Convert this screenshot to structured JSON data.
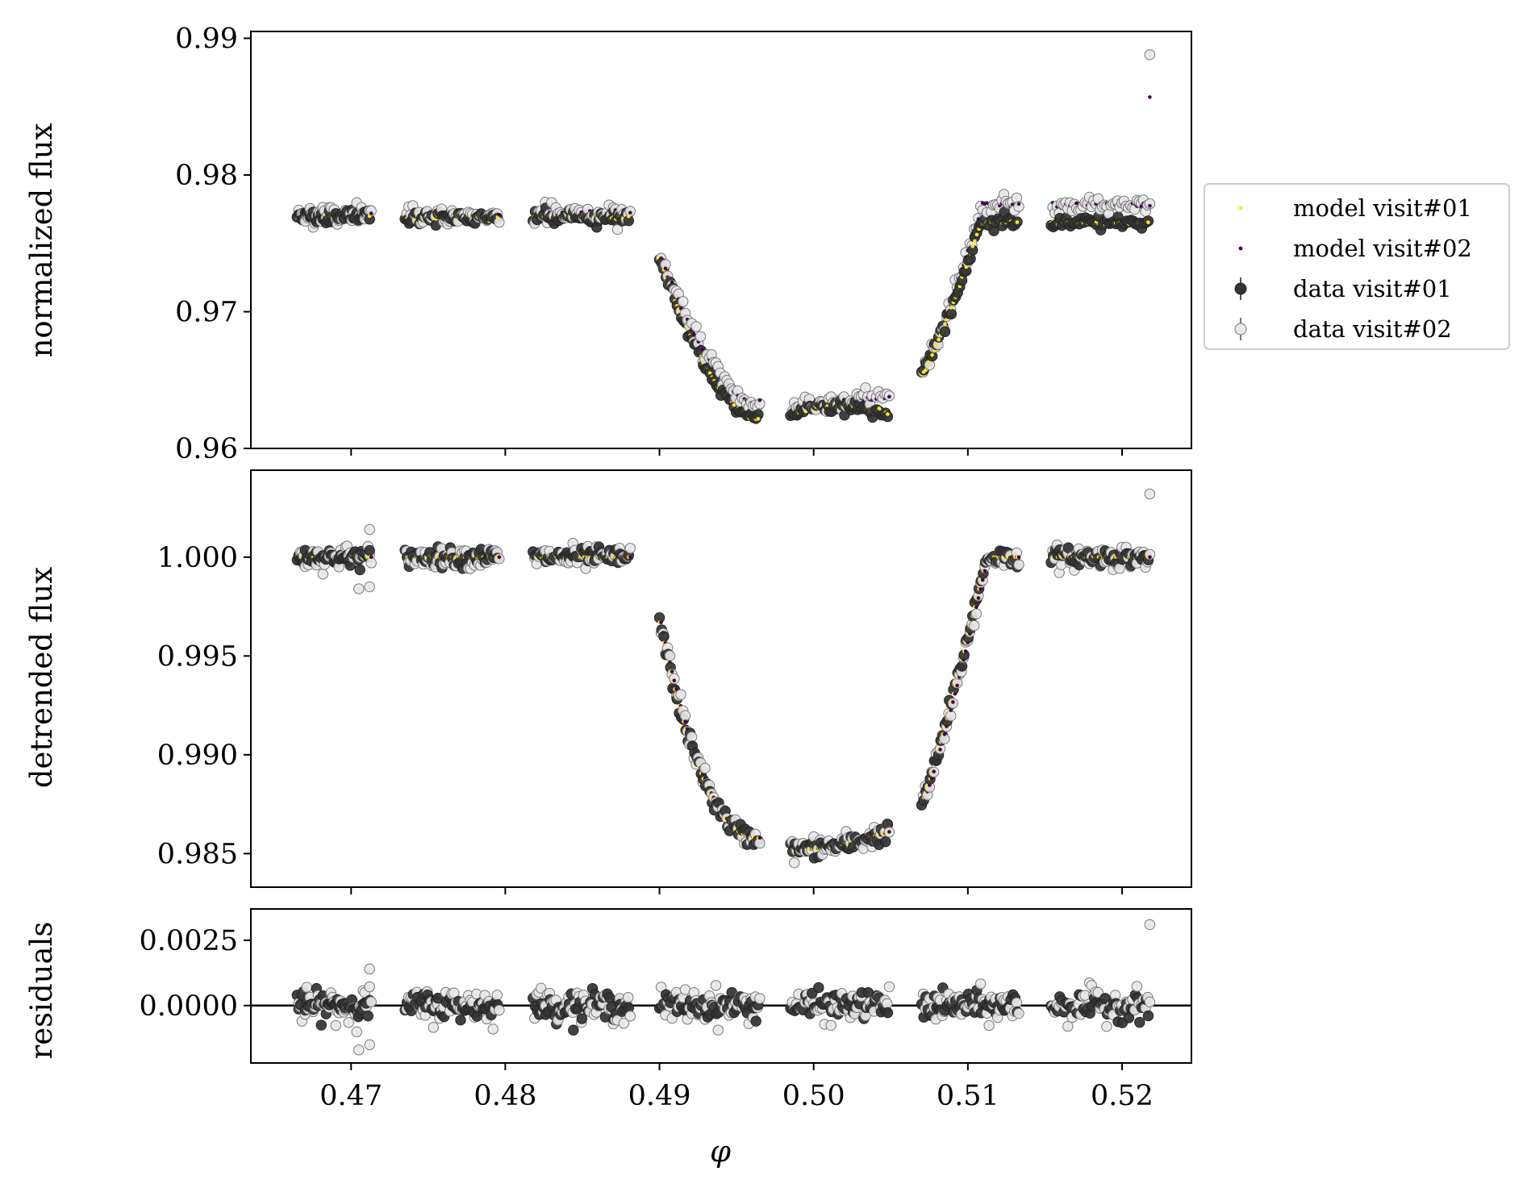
{
  "chart_data": [
    {
      "type": "scatter",
      "panel": "top",
      "ylabel": "normalized flux",
      "xlim": [
        0.4635,
        0.5245
      ],
      "ylim": [
        0.96,
        0.9905
      ],
      "yticks": [
        0.96,
        0.97,
        0.98,
        0.99
      ],
      "ytick_labels": [
        "0.96",
        "0.97",
        "0.98",
        "0.99"
      ],
      "xticks": [
        0.47,
        0.48,
        0.49,
        0.5,
        0.51,
        0.52
      ],
      "segments": [
        {
          "x0": 0.4665,
          "x1": 0.4712,
          "v1": 0.977,
          "v2": 0.9771,
          "dip": 0
        },
        {
          "x0": 0.4735,
          "x1": 0.4795,
          "v1": 0.9769,
          "v2": 0.977,
          "dip": 0
        },
        {
          "x0": 0.4818,
          "x1": 0.488,
          "v1": 0.9769,
          "v2": 0.9772,
          "dip": 0
        },
        {
          "x0": 0.49,
          "x1": 0.4964,
          "v1": 0.974,
          "v2": 0.974,
          "dip": 1
        },
        {
          "x0": 0.4985,
          "x1": 0.5048,
          "v1": 0.9628,
          "v2": 0.963,
          "dip": 2
        },
        {
          "x0": 0.507,
          "x1": 0.5132,
          "v1": 0.9655,
          "v2": 0.9658,
          "dip": 3
        },
        {
          "x0": 0.5154,
          "x1": 0.5217,
          "v1": 0.9765,
          "v2": 0.9778,
          "dip": 0
        }
      ],
      "series": [
        {
          "name": "model visit#01",
          "color": "#fde725"
        },
        {
          "name": "model visit#02",
          "color": "#440154"
        },
        {
          "name": "data visit#01",
          "color": "#333333"
        },
        {
          "name": "data visit#02",
          "color": "#e8e8e8"
        }
      ],
      "outliers": [
        {
          "x": 0.5218,
          "y": 0.9888,
          "series": "data visit#02"
        },
        {
          "x": 0.5218,
          "y": 0.9857,
          "series": "model visit#02"
        }
      ]
    },
    {
      "type": "scatter",
      "panel": "middle",
      "ylabel": "detrended flux",
      "xlim": [
        0.4635,
        0.5245
      ],
      "ylim": [
        0.9833,
        1.0044
      ],
      "yticks": [
        0.985,
        0.99,
        0.995,
        1.0
      ],
      "ytick_labels": [
        "0.985",
        "0.990",
        "0.995",
        "1.000"
      ],
      "xticks": [
        0.47,
        0.48,
        0.49,
        0.5,
        0.51,
        0.52
      ],
      "transit": {
        "ingress_start": 0.49,
        "ingress_end": 0.4964,
        "flat_start": 0.4985,
        "flat_end": 0.5048,
        "egress_start": 0.507,
        "egress_end": 0.5112,
        "ingress_top": 0.9967,
        "bottom": 0.9852,
        "egress_bottom": 0.9876
      },
      "outliers": [
        {
          "x": 0.5218,
          "y": 1.0032
        },
        {
          "x": 0.4712,
          "y": 1.0014
        },
        {
          "x": 0.4705,
          "y": 0.9984
        },
        {
          "x": 0.4712,
          "y": 0.9985
        }
      ]
    },
    {
      "type": "scatter",
      "panel": "bottom",
      "ylabel": "residuals",
      "xlabel": "φ",
      "xlim": [
        0.4635,
        0.5245
      ],
      "ylim": [
        -0.0022,
        0.0037
      ],
      "yticks": [
        0.0,
        0.0025
      ],
      "ytick_labels": [
        "0.0000",
        "0.0025"
      ],
      "xticks": [
        0.47,
        0.48,
        0.49,
        0.5,
        0.51,
        0.52
      ],
      "xtick_labels": [
        "0.47",
        "0.48",
        "0.49",
        "0.50",
        "0.51",
        "0.52"
      ],
      "outliers": [
        {
          "x": 0.5218,
          "y": 0.0031
        },
        {
          "x": 0.4712,
          "y": 0.0014
        },
        {
          "x": 0.4705,
          "y": -0.0017
        },
        {
          "x": 0.4712,
          "y": -0.0015
        }
      ]
    }
  ],
  "legend": {
    "placement": "outside-right",
    "entries": [
      "model visit#01",
      "model visit#02",
      "data visit#01",
      "data visit#02"
    ]
  }
}
